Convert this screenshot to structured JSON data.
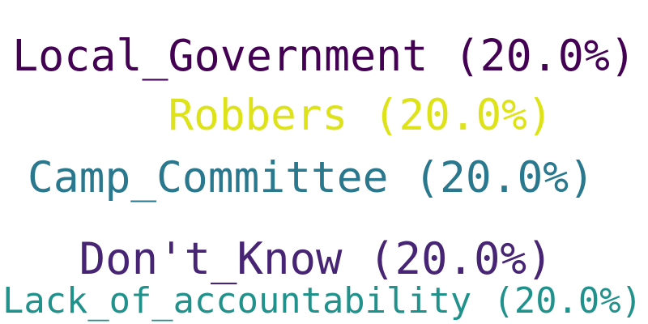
{
  "chart_data": {
    "type": "wordcloud",
    "words": [
      {
        "label": "Local_Government (20.0%)",
        "term": "Local_Government",
        "percent": 20.0,
        "color": "#440154"
      },
      {
        "label": "Robbers (20.0%)",
        "term": "Robbers",
        "percent": 20.0,
        "color": "#dde318"
      },
      {
        "label": "Camp_Committee (20.0%)",
        "term": "Camp_Committee",
        "percent": 20.0,
        "color": "#2a788e"
      },
      {
        "label": "Don't_Know (20.0%)",
        "term": "Don't_Know",
        "percent": 20.0,
        "color": "#482475"
      },
      {
        "label": "Lack_of_accountability (20.0%)",
        "term": "Lack_of_accountability",
        "percent": 20.0,
        "color": "#21918c"
      }
    ]
  }
}
